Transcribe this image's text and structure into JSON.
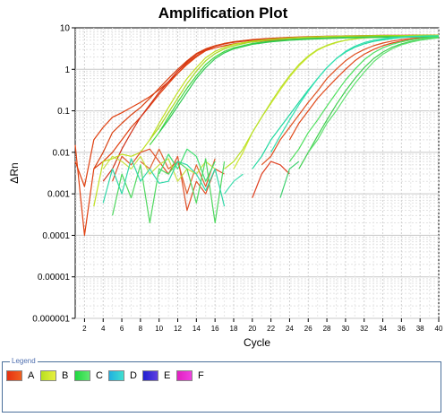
{
  "chart_data": {
    "type": "line",
    "title": "Amplification Plot",
    "xlabel": "Cycle",
    "ylabel": "ΔRn",
    "xlim": [
      1,
      40
    ],
    "ylim": [
      1e-06,
      10
    ],
    "yscale": "log",
    "grid": true,
    "x_ticks": [
      "2",
      "4",
      "6",
      "8",
      "10",
      "12",
      "14",
      "16",
      "18",
      "20",
      "22",
      "24",
      "26",
      "28",
      "30",
      "32",
      "34",
      "36",
      "38",
      "40"
    ],
    "y_ticks": [
      {
        "value": 1e-06,
        "label": "0.000001"
      },
      {
        "value": 1e-05,
        "label": "0.00001"
      },
      {
        "value": 0.0001,
        "label": "0.0001"
      },
      {
        "value": 0.001,
        "label": "0.001"
      },
      {
        "value": 0.01,
        "label": "0.01"
      },
      {
        "value": 0.1,
        "label": "0.1"
      },
      {
        "value": 1,
        "label": "1"
      },
      {
        "value": 10,
        "label": "10"
      }
    ],
    "legend_position": "bottom",
    "series": [
      {
        "name": "A",
        "color": "#e04010",
        "x": [
          1,
          2,
          3,
          4,
          5,
          6,
          7,
          8,
          9,
          10,
          11,
          12,
          13,
          14,
          15,
          16,
          17,
          18,
          20,
          22,
          24,
          26,
          28,
          30,
          32,
          34,
          36,
          38,
          40
        ],
        "values": [
          0.006,
          0.0015,
          0.02,
          0.04,
          0.07,
          0.09,
          0.12,
          0.16,
          0.22,
          0.32,
          0.5,
          0.8,
          1.3,
          2.0,
          2.8,
          3.3,
          3.7,
          4.1,
          4.6,
          5.0,
          5.3,
          5.5,
          5.7,
          5.8,
          5.9,
          6.0,
          6.0,
          6.1,
          6.1
        ]
      },
      {
        "name": "A",
        "color": "#e04010",
        "x": [
          1,
          2,
          3,
          4,
          5,
          6,
          7,
          8,
          9,
          10,
          11,
          12,
          13,
          14,
          15,
          16,
          17,
          18,
          20,
          22,
          24,
          26,
          28,
          30,
          32,
          34,
          36,
          38,
          40
        ],
        "values": [
          0.015,
          0.0001,
          0.004,
          0.006,
          0.01,
          0.02,
          0.04,
          0.07,
          0.13,
          0.25,
          0.45,
          0.8,
          1.4,
          2.1,
          2.9,
          3.6,
          4.1,
          4.6,
          5.1,
          5.5,
          5.8,
          6.0,
          6.2,
          6.3,
          6.4,
          6.5,
          6.5,
          6.6,
          6.6
        ]
      },
      {
        "name": "A",
        "color": "#d03018",
        "x": [
          4,
          5,
          6,
          7,
          8,
          9,
          10,
          11,
          12,
          13,
          14,
          15,
          16,
          17,
          18,
          20,
          22,
          24,
          26,
          28,
          30,
          32,
          34,
          36,
          38,
          40
        ],
        "values": [
          0.002,
          0.004,
          0.012,
          0.03,
          0.07,
          0.14,
          0.28,
          0.5,
          0.9,
          1.5,
          2.3,
          3.0,
          3.6,
          4.1,
          4.5,
          5.0,
          5.4,
          5.7,
          5.9,
          6.1,
          6.2,
          6.3,
          6.4,
          6.4,
          6.5,
          6.5
        ]
      },
      {
        "name": "A",
        "color": "#e05020",
        "x": [
          21,
          22,
          23,
          24,
          25,
          26,
          27,
          28,
          29,
          30,
          31,
          32,
          33,
          34,
          35,
          36,
          37,
          38,
          39,
          40
        ],
        "values": [
          0.005,
          0.008,
          0.02,
          0.04,
          0.08,
          0.16,
          0.3,
          0.6,
          1.0,
          1.6,
          2.3,
          3.0,
          3.7,
          4.3,
          4.8,
          5.2,
          5.5,
          5.7,
          5.9,
          6.0
        ]
      },
      {
        "name": "A",
        "color": "#e04818",
        "x": [
          24,
          25,
          26,
          27,
          28,
          29,
          30,
          31,
          32,
          33,
          34,
          35,
          36,
          37,
          38,
          39,
          40
        ],
        "values": [
          0.02,
          0.05,
          0.1,
          0.2,
          0.35,
          0.6,
          1.0,
          1.6,
          2.3,
          3.0,
          3.7,
          4.3,
          4.8,
          5.2,
          5.5,
          5.7,
          5.9
        ]
      },
      {
        "name": "A",
        "color": "#d84010",
        "x": [
          3,
          4,
          5,
          6,
          7,
          8,
          9,
          10,
          11,
          12,
          13,
          14,
          15,
          16,
          17,
          18,
          20,
          22,
          24,
          26,
          28,
          30,
          32,
          34,
          36,
          38,
          40
        ],
        "values": [
          0.004,
          0.01,
          0.03,
          0.05,
          0.08,
          0.12,
          0.2,
          0.35,
          0.6,
          1.0,
          1.6,
          2.4,
          3.1,
          3.7,
          4.2,
          4.6,
          5.2,
          5.6,
          5.9,
          6.1,
          6.3,
          6.4,
          6.5,
          6.6,
          6.6,
          6.7,
          6.7
        ]
      },
      {
        "name": "B",
        "color": "#c0e020",
        "x": [
          3,
          4,
          5,
          6,
          7,
          8,
          9,
          10,
          11,
          12,
          13,
          14,
          15,
          16,
          17,
          18,
          20,
          22,
          24,
          26,
          28,
          30,
          32,
          34,
          36,
          38,
          40
        ],
        "values": [
          0.0005,
          0.006,
          0.007,
          0.009,
          0.008,
          0.01,
          0.02,
          0.05,
          0.12,
          0.28,
          0.6,
          1.1,
          1.9,
          2.7,
          3.4,
          4.0,
          4.8,
          5.3,
          5.7,
          6.0,
          6.2,
          6.3,
          6.4,
          6.5,
          6.5,
          6.6,
          6.6
        ]
      },
      {
        "name": "B",
        "color": "#a8d820",
        "x": [
          9,
          10,
          11,
          12,
          13,
          14,
          15,
          16,
          17,
          18,
          20,
          22,
          24,
          26,
          28,
          30,
          32,
          34,
          36,
          38,
          40
        ],
        "values": [
          0.02,
          0.04,
          0.09,
          0.2,
          0.45,
          0.9,
          1.6,
          2.4,
          3.1,
          3.7,
          4.6,
          5.2,
          5.6,
          5.9,
          6.1,
          6.3,
          6.4,
          6.5,
          6.5,
          6.6,
          6.6
        ]
      },
      {
        "name": "B",
        "color": "#d0e830",
        "x": [
          18,
          19,
          20,
          21,
          22,
          23,
          24,
          25,
          26,
          27,
          28,
          29,
          30,
          31,
          32,
          34,
          36,
          38,
          40
        ],
        "values": [
          0.004,
          0.01,
          0.03,
          0.07,
          0.15,
          0.32,
          0.65,
          1.2,
          2.0,
          2.9,
          3.7,
          4.4,
          5.0,
          5.4,
          5.7,
          6.0,
          6.2,
          6.3,
          6.4
        ]
      },
      {
        "name": "B",
        "color": "#b8e028",
        "x": [
          17,
          18,
          19,
          20,
          21,
          22,
          23,
          24,
          25,
          26,
          27,
          28,
          29,
          30,
          31,
          32,
          34,
          36,
          38,
          40
        ],
        "values": [
          0.004,
          0.006,
          0.012,
          0.03,
          0.07,
          0.16,
          0.35,
          0.7,
          1.3,
          2.1,
          3.0,
          3.8,
          4.5,
          5.0,
          5.4,
          5.7,
          6.0,
          6.2,
          6.3,
          6.4
        ]
      },
      {
        "name": "C",
        "color": "#40d840",
        "x": [
          9,
          10,
          11,
          12,
          13,
          14,
          15,
          16,
          17,
          18,
          20,
          22,
          24,
          26,
          28,
          30,
          32,
          34,
          36,
          38,
          40
        ],
        "values": [
          0.015,
          0.03,
          0.07,
          0.16,
          0.35,
          0.7,
          1.3,
          2.0,
          2.7,
          3.3,
          4.2,
          4.8,
          5.2,
          5.5,
          5.7,
          5.9,
          6.0,
          6.1,
          6.1,
          6.2,
          6.2
        ]
      },
      {
        "name": "C",
        "color": "#30c850",
        "x": [
          10,
          11,
          12,
          13,
          14,
          15,
          16,
          17,
          18,
          20,
          22,
          24,
          26,
          28,
          30,
          32,
          34,
          36,
          38,
          40
        ],
        "values": [
          0.03,
          0.06,
          0.13,
          0.28,
          0.6,
          1.1,
          1.8,
          2.5,
          3.1,
          4.0,
          4.6,
          5.0,
          5.3,
          5.5,
          5.7,
          5.8,
          5.9,
          6.0,
          6.0,
          6.0
        ]
      },
      {
        "name": "C",
        "color": "#50e060",
        "x": [
          24,
          25,
          26,
          27,
          28,
          29,
          30,
          31,
          32,
          33,
          34,
          35,
          36,
          37,
          38,
          39,
          40
        ],
        "values": [
          0.006,
          0.012,
          0.03,
          0.06,
          0.13,
          0.27,
          0.55,
          1.0,
          1.7,
          2.5,
          3.3,
          4.0,
          4.6,
          5.1,
          5.5,
          5.8,
          6.0
        ]
      },
      {
        "name": "C",
        "color": "#40d050",
        "x": [
          25,
          26,
          27,
          28,
          29,
          30,
          31,
          32,
          33,
          34,
          35,
          36,
          37,
          38,
          39,
          40
        ],
        "values": [
          0.004,
          0.01,
          0.025,
          0.06,
          0.14,
          0.3,
          0.6,
          1.1,
          1.8,
          2.6,
          3.4,
          4.1,
          4.7,
          5.1,
          5.5,
          5.8
        ]
      },
      {
        "name": "C",
        "color": "#60e070",
        "x": [
          26,
          27,
          28,
          29,
          30,
          31,
          32,
          33,
          34,
          35,
          36,
          37,
          38,
          39,
          40
        ],
        "values": [
          0.01,
          0.02,
          0.05,
          0.1,
          0.22,
          0.45,
          0.85,
          1.5,
          2.3,
          3.1,
          3.9,
          4.5,
          5.0,
          5.4,
          5.7
        ]
      },
      {
        "name": "D",
        "color": "#20d8a0",
        "x": [
          20,
          21,
          22,
          23,
          24,
          25,
          26,
          27,
          28,
          29,
          30,
          31,
          32,
          33,
          34,
          35,
          36,
          37,
          38,
          39,
          40
        ],
        "values": [
          0.004,
          0.008,
          0.02,
          0.04,
          0.08,
          0.16,
          0.32,
          0.6,
          1.1,
          1.8,
          2.6,
          3.4,
          4.1,
          4.7,
          5.1,
          5.5,
          5.8,
          6.0,
          6.2,
          6.3,
          6.4
        ]
      },
      {
        "name": "D",
        "color": "#30e0b0",
        "x": [
          22,
          23,
          24,
          25,
          26,
          27,
          28,
          29,
          30,
          31,
          32,
          33,
          34,
          35,
          36,
          37,
          38,
          39,
          40
        ],
        "values": [
          0.01,
          0.025,
          0.06,
          0.14,
          0.3,
          0.6,
          1.1,
          1.8,
          2.7,
          3.6,
          4.4,
          5.0,
          5.4,
          5.8,
          6.0,
          6.2,
          6.3,
          6.4,
          6.4
        ]
      },
      {
        "name": "A",
        "color": "#e05028",
        "x": [
          5,
          6,
          7,
          8,
          9,
          10,
          11,
          12,
          13,
          14,
          15,
          16,
          17
        ],
        "values": [
          0.002,
          0.008,
          0.005,
          0.01,
          0.012,
          0.006,
          0.003,
          0.008,
          0.0004,
          0.002,
          0.001,
          0.004,
          0.003
        ]
      },
      {
        "name": "A",
        "color": "#e06030",
        "x": [
          8,
          9,
          10,
          11,
          12,
          13,
          14,
          15,
          16
        ],
        "values": [
          0.006,
          0.004,
          0.012,
          0.004,
          0.006,
          0.001,
          0.005,
          0.0015,
          0.007
        ]
      },
      {
        "name": "B",
        "color": "#c8e040",
        "x": [
          4,
          5,
          6,
          7,
          8,
          9,
          10,
          11,
          12,
          13,
          14,
          15,
          16
        ],
        "values": [
          0.004,
          0.008,
          0.006,
          0.004,
          0.008,
          0.003,
          0.005,
          0.007,
          0.002,
          0.004,
          0.003,
          0.006,
          0.004
        ]
      },
      {
        "name": "C",
        "color": "#50d860",
        "x": [
          5,
          6,
          7,
          8,
          9,
          10,
          11,
          12,
          13,
          14,
          15,
          16,
          17
        ],
        "values": [
          0.0003,
          0.003,
          0.0008,
          0.005,
          0.0002,
          0.004,
          0.003,
          0.006,
          0.004,
          0.0006,
          0.007,
          0.0002,
          0.006
        ]
      },
      {
        "name": "D",
        "color": "#30d8a8",
        "x": [
          4,
          5,
          6,
          7,
          8,
          9,
          10,
          11,
          12,
          13,
          14,
          15,
          16,
          17
        ],
        "values": [
          0.0006,
          0.004,
          0.001,
          0.007,
          0.002,
          0.004,
          0.0018,
          0.002,
          0.006,
          0.005,
          0.003,
          0.0012,
          0.004,
          0.0005
        ]
      },
      {
        "name": "C",
        "color": "#40e070",
        "x": [
          10,
          11,
          12,
          13,
          14,
          15,
          16
        ],
        "values": [
          0.003,
          0.009,
          0.004,
          0.012,
          0.008,
          0.002,
          0.006
        ]
      },
      {
        "name": "D",
        "color": "#40e0b0",
        "x": [
          17,
          18,
          19
        ],
        "values": [
          0.001,
          0.002,
          0.003
        ]
      },
      {
        "name": "A",
        "color": "#e04020",
        "x": [
          20,
          21,
          22,
          23,
          24
        ],
        "values": [
          0.0008,
          0.003,
          0.006,
          0.005,
          0.003
        ]
      },
      {
        "name": "C",
        "color": "#40d070",
        "x": [
          23,
          24,
          25
        ],
        "values": [
          0.0008,
          0.004,
          0.006
        ]
      }
    ]
  },
  "legend": {
    "title": "Legend",
    "items": [
      {
        "label": "A",
        "color_from": "#e63010",
        "color_to": "#f06020"
      },
      {
        "label": "B",
        "color_from": "#b8e020",
        "color_to": "#e8f040"
      },
      {
        "label": "C",
        "color_from": "#20d840",
        "color_to": "#60e870"
      },
      {
        "label": "D",
        "color_from": "#20b0e0",
        "color_to": "#40e0d0"
      },
      {
        "label": "E",
        "color_from": "#2020d0",
        "color_to": "#6040e0"
      },
      {
        "label": "F",
        "color_from": "#e020c0",
        "color_to": "#f040e0"
      }
    ]
  }
}
